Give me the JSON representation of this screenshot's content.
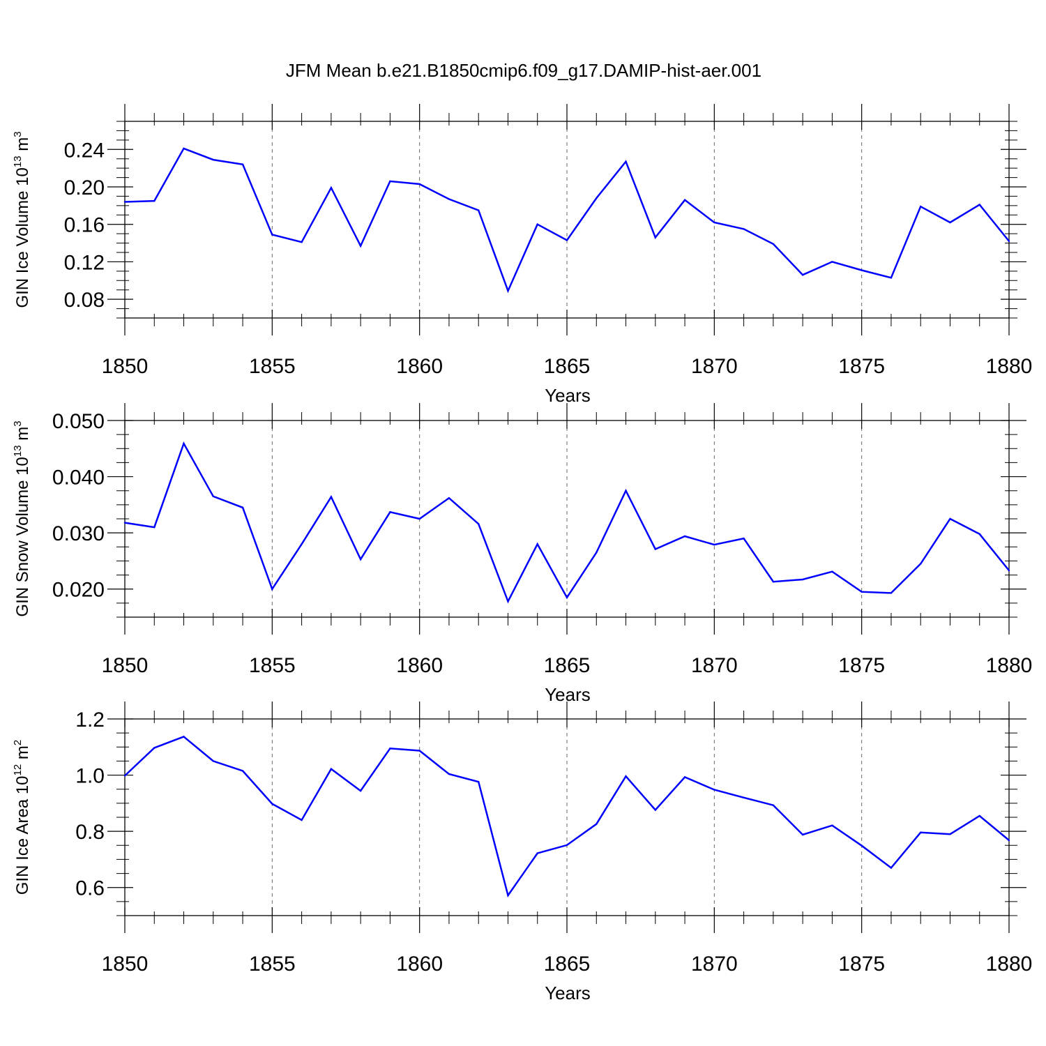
{
  "title": "JFM Mean b.e21.B1850cmip6.f09_g17.DAMIP-hist-aer.001",
  "colors": {
    "line": "#0000ff",
    "axes": "#000000",
    "grid": "#666666"
  },
  "chart_data": [
    {
      "type": "line",
      "xlabel": "Years",
      "ylabel": {
        "main": "GIN Ice Volume 10",
        "exp": "13",
        "unit": " m",
        "unit_exp": "3"
      },
      "xlim": [
        1850,
        1880
      ],
      "ylim": [
        0.06,
        0.27
      ],
      "xticks": [
        1850,
        1855,
        1860,
        1865,
        1870,
        1875,
        1880
      ],
      "xtick_labels": [
        "1850",
        "1855",
        "1860",
        "1865",
        "1870",
        "1875",
        "1880"
      ],
      "yticks": [
        0.08,
        0.12,
        0.16,
        0.2,
        0.24
      ],
      "ytick_labels": [
        "0.08",
        "0.12",
        "0.16",
        "0.20",
        "0.24"
      ],
      "grid": "x-dashed",
      "x": [
        1850,
        1851,
        1852,
        1853,
        1854,
        1855,
        1856,
        1857,
        1858,
        1859,
        1860,
        1861,
        1862,
        1863,
        1864,
        1865,
        1866,
        1867,
        1868,
        1869,
        1870,
        1871,
        1872,
        1873,
        1874,
        1875,
        1876,
        1877,
        1878,
        1879,
        1880
      ],
      "values": [
        0.184,
        0.185,
        0.241,
        0.229,
        0.224,
        0.149,
        0.141,
        0.199,
        0.137,
        0.206,
        0.203,
        0.187,
        0.175,
        0.089,
        0.16,
        0.143,
        0.188,
        0.227,
        0.146,
        0.186,
        0.162,
        0.155,
        0.139,
        0.106,
        0.12,
        0.111,
        0.103,
        0.179,
        0.162,
        0.181,
        0.142
      ]
    },
    {
      "type": "line",
      "xlabel": "Years",
      "ylabel": {
        "main": "GIN Snow Volume 10",
        "exp": "13",
        "unit": " m",
        "unit_exp": "3"
      },
      "xlim": [
        1850,
        1880
      ],
      "ylim": [
        0.015,
        0.05
      ],
      "xticks": [
        1850,
        1855,
        1860,
        1865,
        1870,
        1875,
        1880
      ],
      "xtick_labels": [
        "1850",
        "1855",
        "1860",
        "1865",
        "1870",
        "1875",
        "1880"
      ],
      "yticks": [
        0.02,
        0.03,
        0.04,
        0.05
      ],
      "ytick_labels": [
        "0.020",
        "0.030",
        "0.040",
        "0.050"
      ],
      "grid": "x-dashed",
      "x": [
        1850,
        1851,
        1852,
        1853,
        1854,
        1855,
        1856,
        1857,
        1858,
        1859,
        1860,
        1861,
        1862,
        1863,
        1864,
        1865,
        1866,
        1867,
        1868,
        1869,
        1870,
        1871,
        1872,
        1873,
        1874,
        1875,
        1876,
        1877,
        1878,
        1879,
        1880
      ],
      "values": [
        0.0318,
        0.031,
        0.0459,
        0.0365,
        0.0345,
        0.02,
        0.028,
        0.0364,
        0.0253,
        0.0337,
        0.0325,
        0.0362,
        0.0316,
        0.0178,
        0.028,
        0.0185,
        0.0265,
        0.0375,
        0.0271,
        0.0294,
        0.0279,
        0.029,
        0.0213,
        0.0217,
        0.0231,
        0.0195,
        0.0193,
        0.0245,
        0.0325,
        0.0298,
        0.0233
      ]
    },
    {
      "type": "line",
      "xlabel": "Years",
      "ylabel": {
        "main": "GIN Ice Area 10",
        "exp": "12",
        "unit": " m",
        "unit_exp": "2"
      },
      "xlim": [
        1850,
        1880
      ],
      "ylim": [
        0.5,
        1.2
      ],
      "xticks": [
        1850,
        1855,
        1860,
        1865,
        1870,
        1875,
        1880
      ],
      "xtick_labels": [
        "1850",
        "1855",
        "1860",
        "1865",
        "1870",
        "1875",
        "1880"
      ],
      "yticks": [
        0.6,
        0.8,
        1.0,
        1.2
      ],
      "ytick_labels": [
        "0.6",
        "0.8",
        "1.0",
        "1.2"
      ],
      "grid": "x-dashed",
      "x": [
        1850,
        1851,
        1852,
        1853,
        1854,
        1855,
        1856,
        1857,
        1858,
        1859,
        1860,
        1861,
        1862,
        1863,
        1864,
        1865,
        1866,
        1867,
        1868,
        1869,
        1870,
        1871,
        1872,
        1873,
        1874,
        1875,
        1876,
        1877,
        1878,
        1879,
        1880
      ],
      "values": [
        0.998,
        1.097,
        1.137,
        1.05,
        1.015,
        0.898,
        0.84,
        1.022,
        0.944,
        1.095,
        1.087,
        1.004,
        0.976,
        0.572,
        0.722,
        0.751,
        0.826,
        0.996,
        0.876,
        0.993,
        0.948,
        0.92,
        0.893,
        0.788,
        0.821,
        0.749,
        0.67,
        0.796,
        0.79,
        0.855,
        0.768
      ]
    }
  ]
}
